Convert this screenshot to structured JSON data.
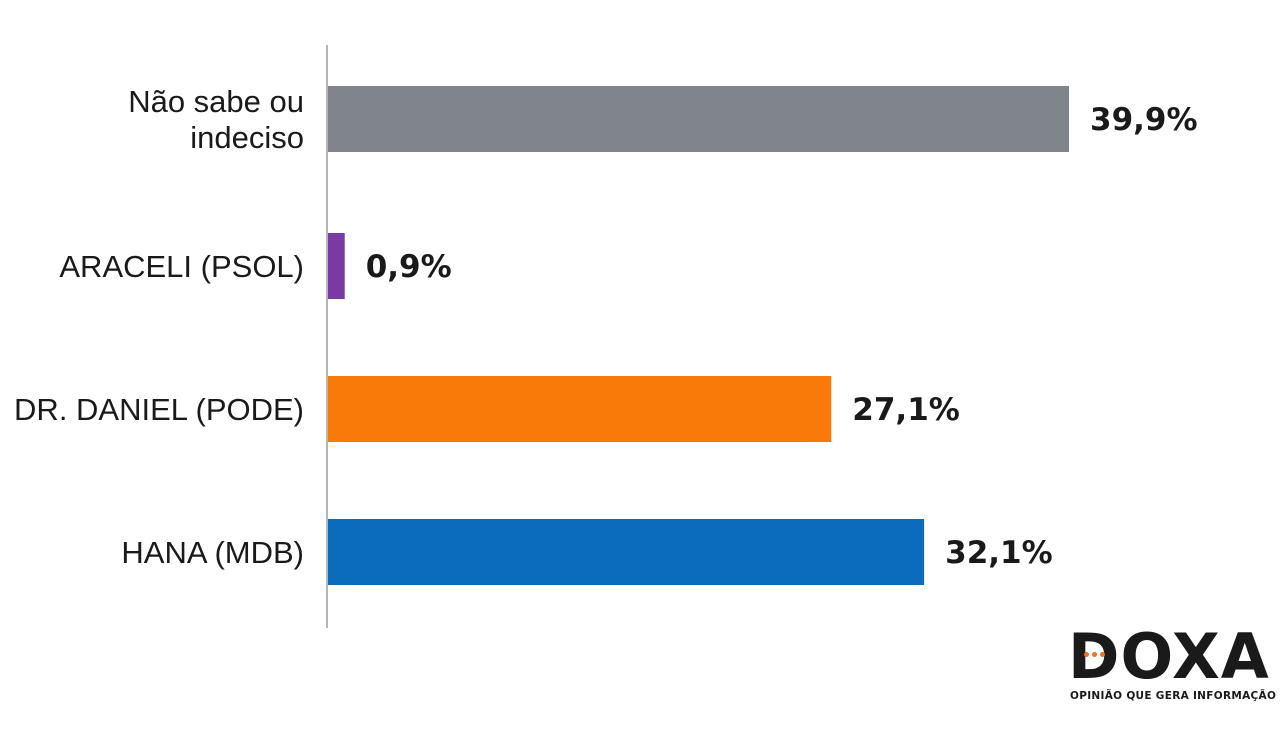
{
  "chart_data": {
    "type": "bar",
    "orientation": "horizontal",
    "categories": [
      [
        "Não sabe ou",
        "indeciso"
      ],
      [
        "ARACELI (PSOL)"
      ],
      [
        "DR. DANIEL (PODE)"
      ],
      [
        "HANA (MDB)"
      ]
    ],
    "values": [
      39.9,
      0.9,
      27.1,
      32.1
    ],
    "value_labels": [
      "39,9%",
      "0,9%",
      "27,1%",
      "32,1%"
    ],
    "colors": [
      "#80848b",
      "#7b3aa3",
      "#fa7a09",
      "#0b6bbd"
    ],
    "grid": false,
    "legend": "none"
  },
  "logo": {
    "word": "DOXA",
    "tagline": "OPINIÃO QUE GERA INFORMAÇÃO",
    "accent_color": "#f36f21"
  }
}
